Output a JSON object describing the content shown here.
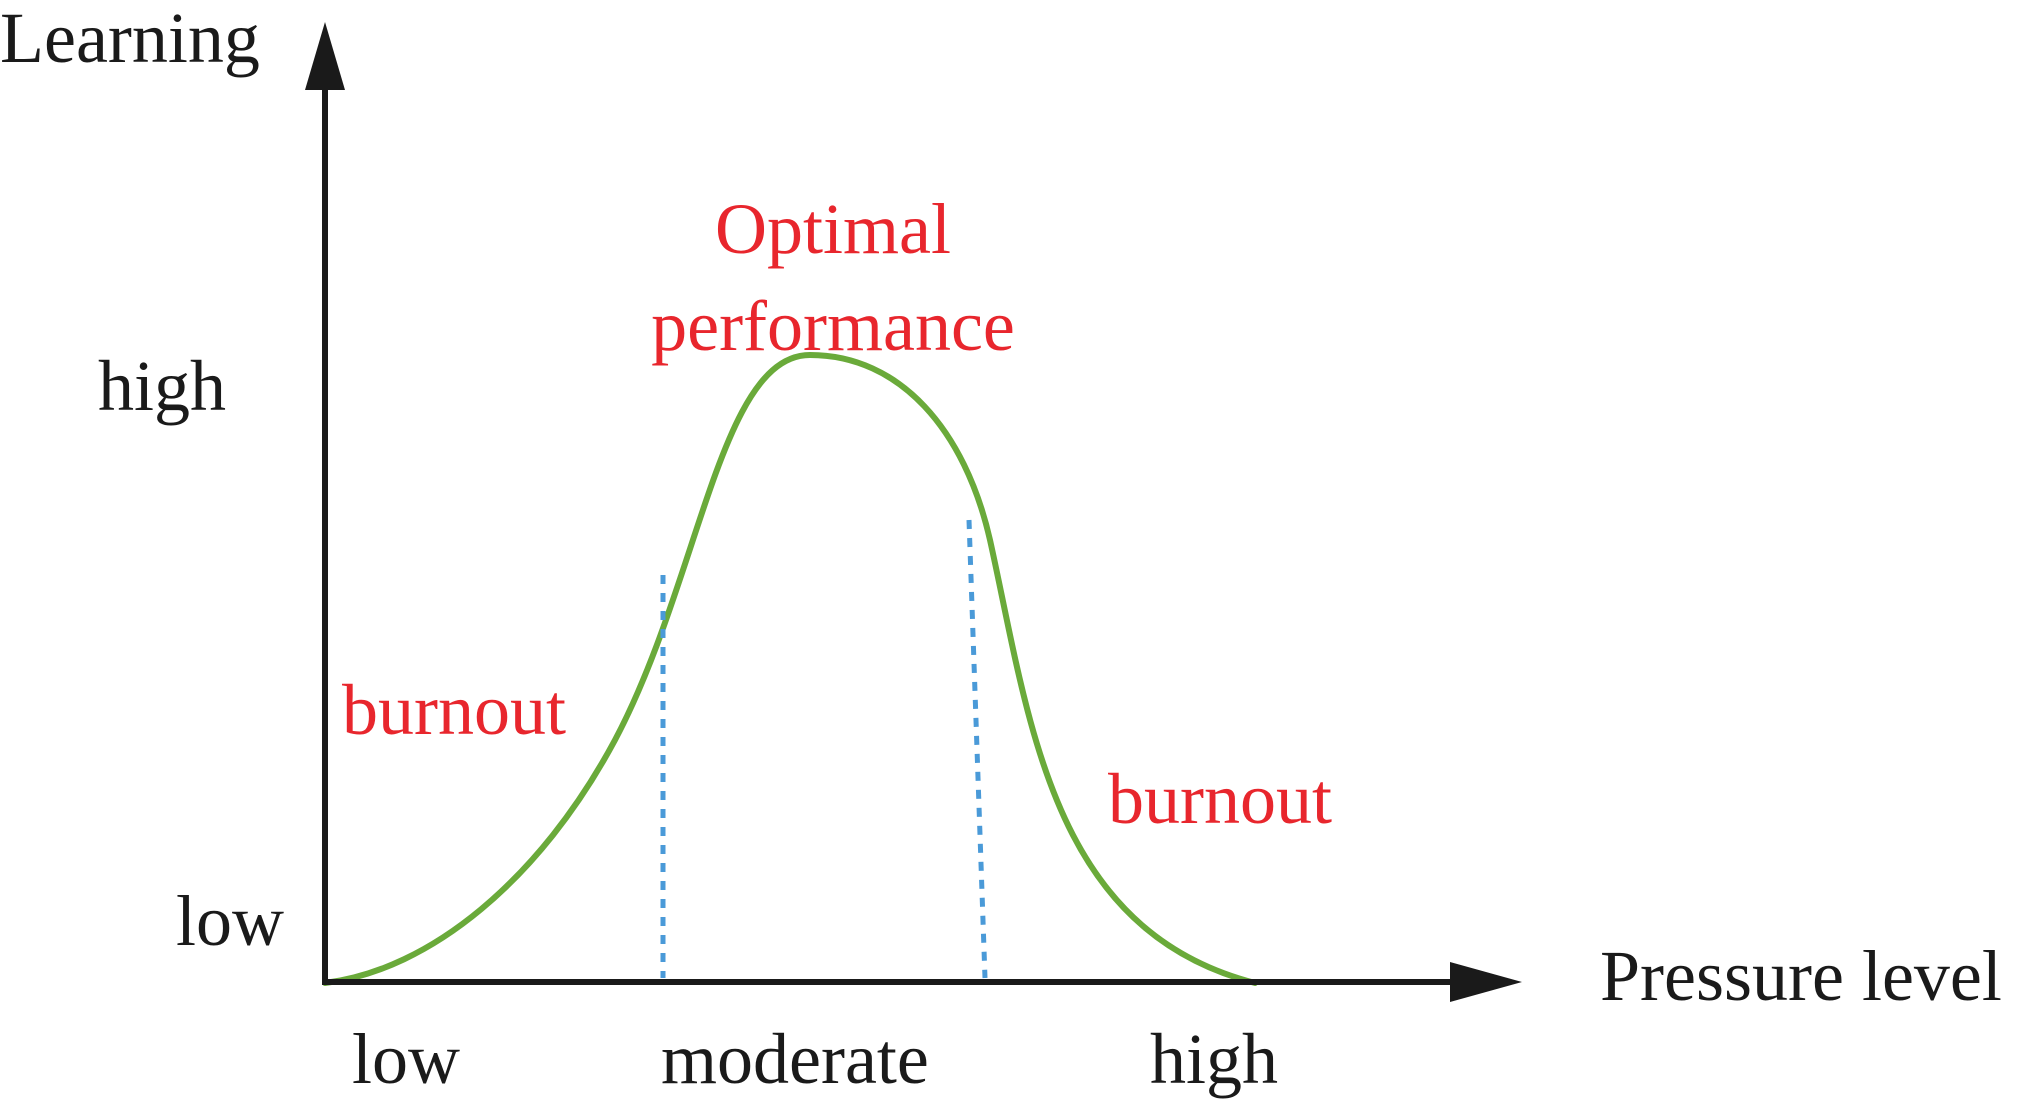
{
  "axes": {
    "y_title": "Learning",
    "x_title": "Pressure level",
    "y_ticks": {
      "high": "high",
      "low": "low"
    },
    "x_ticks": {
      "low": "low",
      "moderate": "moderate",
      "high": "high"
    }
  },
  "annotations": {
    "peak_line1": "Optimal",
    "peak_line2": "performance",
    "left_zone": "burnout",
    "right_zone": "burnout"
  },
  "colors": {
    "axis": "#1a1a1a",
    "curve": "#6aaa3a",
    "divider": "#4a9ad8",
    "annotation": "#e8262d"
  }
}
